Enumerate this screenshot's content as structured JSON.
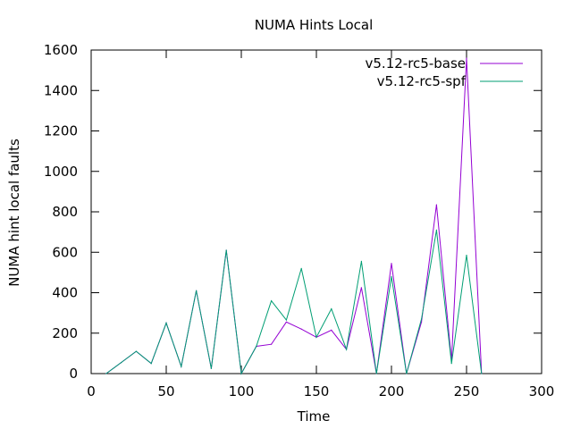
{
  "chart_data": {
    "type": "line",
    "title": "NUMA Hints Local",
    "xlabel": "Time",
    "ylabel": "NUMA hint local faults",
    "xlim": [
      0,
      300
    ],
    "ylim": [
      0,
      1600
    ],
    "xticks": [
      0,
      50,
      100,
      150,
      200,
      250,
      300
    ],
    "yticks": [
      0,
      200,
      400,
      600,
      800,
      1000,
      1200,
      1400,
      1600
    ],
    "grid": false,
    "legend_position": "top-right",
    "x": [
      10,
      20,
      30,
      40,
      50,
      60,
      70,
      80,
      90,
      100,
      110,
      120,
      130,
      140,
      150,
      160,
      170,
      180,
      190,
      200,
      210,
      220,
      230,
      240,
      250,
      260
    ],
    "series": [
      {
        "name": "v5.12-rc5-base",
        "color": "#9400d3",
        "values": [
          0,
          55,
          110,
          50,
          250,
          35,
          410,
          25,
          610,
          0,
          135,
          145,
          255,
          220,
          180,
          215,
          120,
          425,
          0,
          545,
          0,
          255,
          835,
          65,
          1560,
          0
        ]
      },
      {
        "name": "v5.12-rc5-spf",
        "color": "#009e73",
        "values": [
          0,
          55,
          110,
          50,
          250,
          35,
          410,
          25,
          610,
          0,
          135,
          360,
          265,
          520,
          180,
          320,
          120,
          555,
          0,
          480,
          0,
          270,
          710,
          50,
          585,
          0
        ]
      }
    ]
  }
}
